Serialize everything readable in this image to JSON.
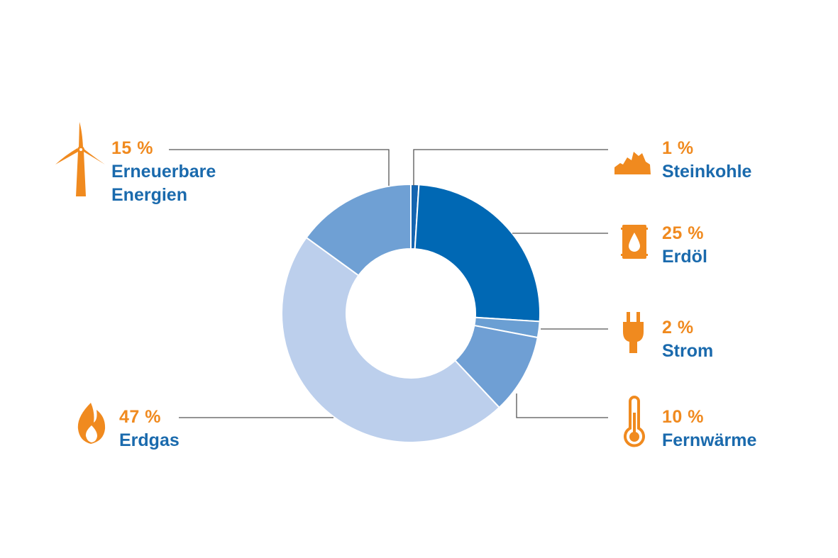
{
  "colors": {
    "accent_orange": "#f08a1f",
    "label_blue": "#1a6aad",
    "leader_line": "#555555"
  },
  "chart_data": {
    "type": "pie",
    "variant": "donut",
    "unit": "%",
    "slices": [
      {
        "label": "Steinkohle",
        "value": 1,
        "value_label": "1 %",
        "color": "#1565b0",
        "icon": "coal-icon"
      },
      {
        "label": "Erdöl",
        "value": 25,
        "value_label": "25 %",
        "color": "#0068b4",
        "icon": "oil-barrel-icon"
      },
      {
        "label": "Strom",
        "value": 2,
        "value_label": "2 %",
        "color": "#6b9fd3",
        "icon": "power-plug-icon"
      },
      {
        "label": "Fernwärme",
        "value": 10,
        "value_label": "10 %",
        "color": "#6f9fd4",
        "icon": "thermometer-icon"
      },
      {
        "label": "Erdgas",
        "value": 47,
        "value_label": "47 %",
        "color": "#bccfec",
        "icon": "flame-icon"
      },
      {
        "label": "Erneuerbare Energien",
        "label_lines": [
          "Erneuerbare",
          "Energien"
        ],
        "value": 15,
        "value_label": "15 %",
        "color": "#6fa0d4",
        "icon": "wind-turbine-icon"
      }
    ]
  }
}
